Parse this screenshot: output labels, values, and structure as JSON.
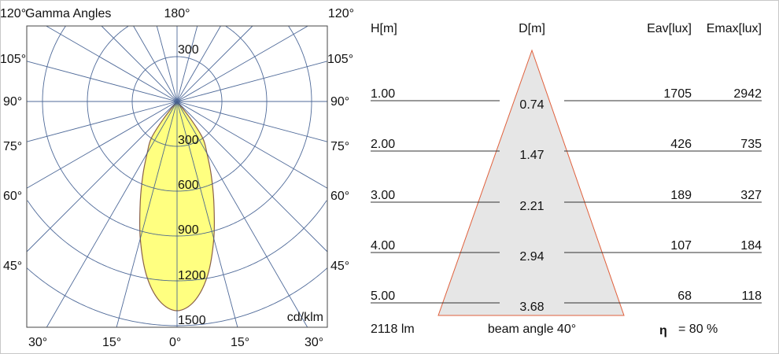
{
  "polar": {
    "title": "Gamma Angles",
    "top_left_angle": "120°",
    "top_center_angle": "180°",
    "top_right_angle": "120°",
    "side_angles": [
      "105°",
      "90°",
      "75°",
      "60°",
      "45°"
    ],
    "bottom_angles": [
      "30°",
      "15°",
      "0°",
      "15°",
      "30°"
    ],
    "upper_ring_label": "300",
    "ring_labels": [
      "300",
      "600",
      "900",
      "1200",
      "1500"
    ],
    "unit": "cd/klm",
    "grid_color": "#3c5a8e",
    "curve_fill": "#ffff80",
    "curve_stroke": "#8a6048"
  },
  "chart_data": {
    "type": "polar",
    "unit": "cd/klm",
    "rlim": [
      0,
      1500
    ],
    "ring_ticks": [
      300,
      600,
      900,
      1200,
      1500
    ],
    "angle_step_deg": 15,
    "grid": true,
    "gamma_deg": [
      0,
      5,
      10,
      15,
      20,
      25,
      30,
      35,
      38,
      40
    ],
    "intensity": [
      1400,
      1340,
      1180,
      950,
      720,
      540,
      400,
      300,
      150,
      0
    ]
  },
  "cone": {
    "headers": {
      "h": "H[m]",
      "d": "D[m]",
      "eav": "Eav[lux]",
      "emax": "Emax[lux]"
    },
    "rows": [
      {
        "h": "1.00",
        "d": "0.74",
        "eav": "1705",
        "emax": "2942"
      },
      {
        "h": "2.00",
        "d": "1.47",
        "eav": "426",
        "emax": "735"
      },
      {
        "h": "3.00",
        "d": "2.21",
        "eav": "189",
        "emax": "327"
      },
      {
        "h": "4.00",
        "d": "2.94",
        "eav": "107",
        "emax": "184"
      },
      {
        "h": "5.00",
        "d": "3.68",
        "eav": "68",
        "emax": "118"
      }
    ],
    "flux": "2118 lm",
    "beam_angle": "beam angle 40°",
    "eta_symbol": "η",
    "efficiency": "= 80 %",
    "cone_fill": "#e6e6e6",
    "cone_stroke": "#e0603c"
  }
}
